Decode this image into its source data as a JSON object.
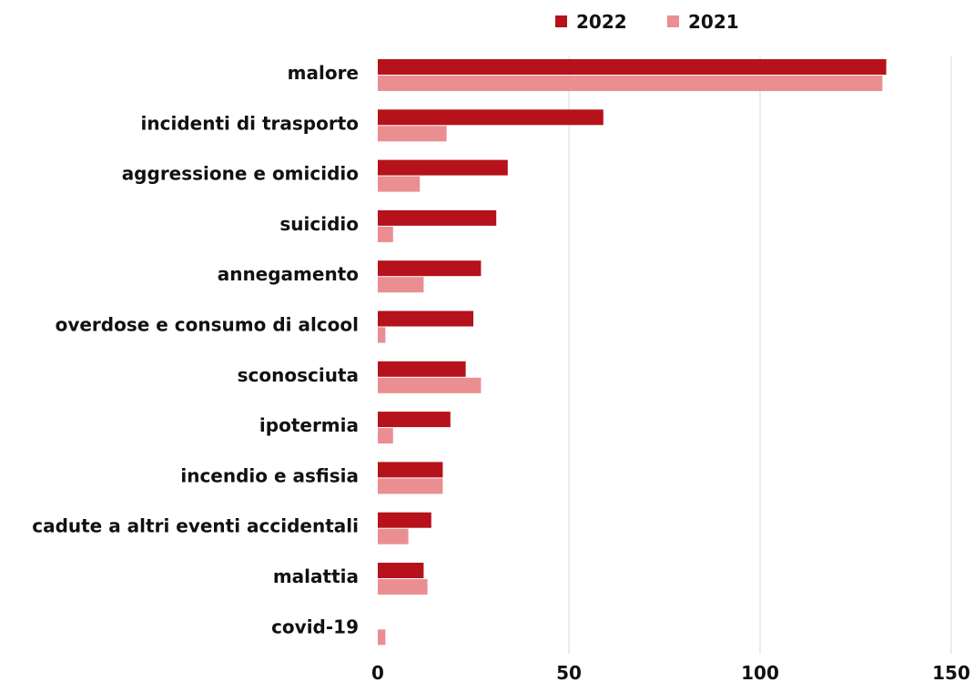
{
  "chart_data": {
    "type": "bar",
    "orientation": "horizontal",
    "categories": [
      "malore",
      "incidenti di trasporto",
      "aggressione e omicidio",
      "suicidio",
      "annegamento",
      "overdose e consumo di alcool",
      "sconosciuta",
      "ipotermia",
      "incendio e asfisia",
      "cadute a altri eventi accidentali",
      "malattia",
      "covid-19"
    ],
    "series": [
      {
        "name": "2022",
        "color": "#b5121b",
        "values": [
          133,
          59,
          34,
          31,
          27,
          25,
          23,
          19,
          17,
          14,
          12,
          0
        ]
      },
      {
        "name": "2021",
        "color": "#eb8e92",
        "values": [
          132,
          18,
          11,
          4,
          12,
          2,
          27,
          4,
          17,
          8,
          13,
          2
        ]
      }
    ],
    "xlim": [
      0,
      150
    ],
    "x_ticks": [
      "0",
      "50",
      "100",
      "150"
    ],
    "x_tick_values": [
      0,
      50,
      100,
      150
    ],
    "grid": "vertical",
    "grid_color": "#d9d9d9",
    "legend_position": "top"
  }
}
